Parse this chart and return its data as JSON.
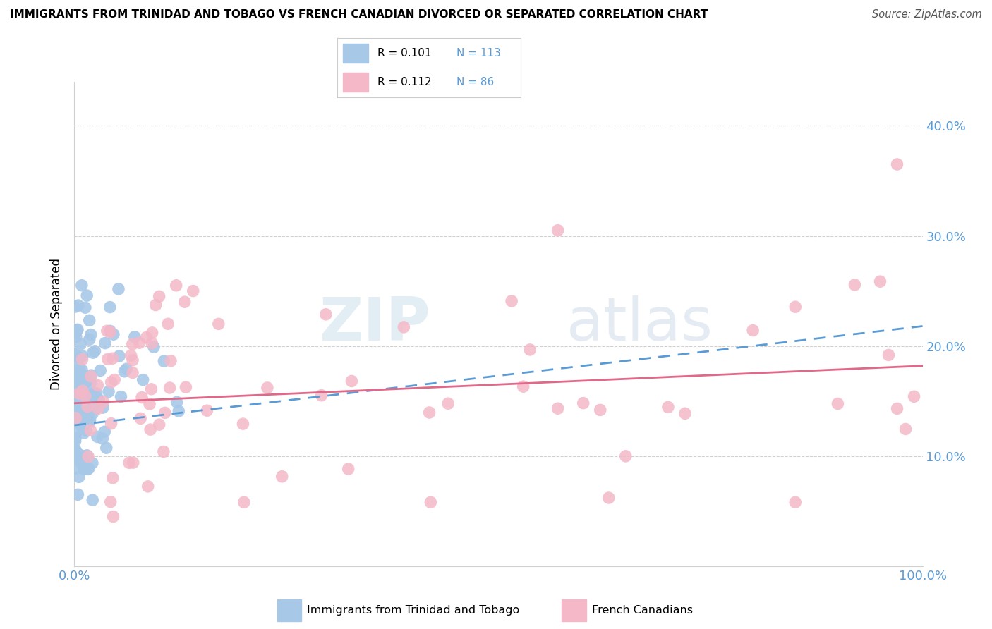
{
  "title": "IMMIGRANTS FROM TRINIDAD AND TOBAGO VS FRENCH CANADIAN DIVORCED OR SEPARATED CORRELATION CHART",
  "source": "Source: ZipAtlas.com",
  "ylabel": "Divorced or Separated",
  "blue_color": "#a8c8e8",
  "blue_line_color": "#5b9bd5",
  "pink_color": "#f4b8c8",
  "pink_line_color": "#e06888",
  "watermark_zip": "ZIP",
  "watermark_atlas": "atlas",
  "grid_color": "#d0d0d0",
  "xlim": [
    0.0,
    1.0
  ],
  "ylim": [
    0.0,
    0.44
  ],
  "yticks": [
    0.1,
    0.2,
    0.3,
    0.4
  ],
  "ytick_labels": [
    "10.0%",
    "20.0%",
    "30.0%",
    "40.0%"
  ],
  "legend_r1": "R = 0.101",
  "legend_n1": "N = 113",
  "legend_r2": "R = 0.112",
  "legend_n2": "N = 86",
  "text_color_blue": "#5b9bd5",
  "text_color_dark": "#333333"
}
